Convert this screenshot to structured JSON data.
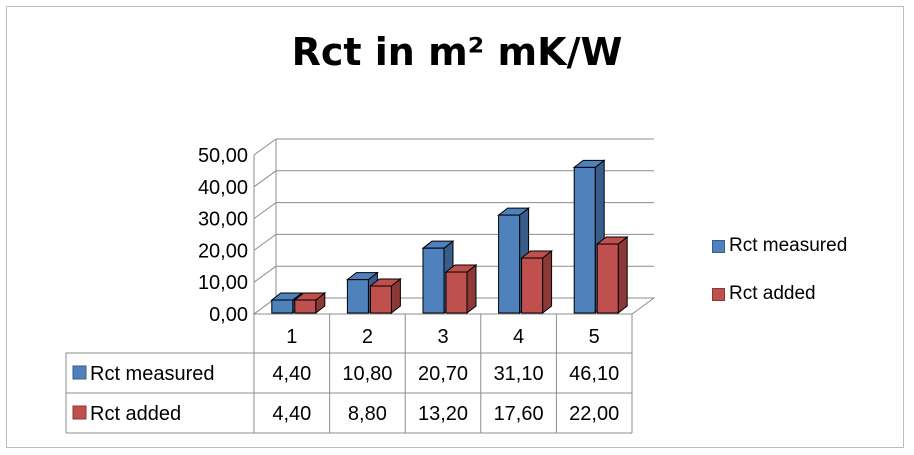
{
  "colors": {
    "measured": "#4f81bd",
    "measured_dark": "#385d8a",
    "added": "#c0504d",
    "added_dark": "#8c3836",
    "grid": "#8c8c8c"
  },
  "chart_data": {
    "type": "bar",
    "title": "Rct in m² mK/W",
    "categories": [
      "1",
      "2",
      "3",
      "4",
      "5"
    ],
    "series": [
      {
        "name": "Rct measured",
        "values": [
          4.4,
          10.8,
          20.7,
          31.1,
          46.1
        ]
      },
      {
        "name": "Rct added",
        "values": [
          4.4,
          8.8,
          13.2,
          17.6,
          22.0
        ]
      }
    ],
    "value_labels": {
      "measured": [
        "4,40",
        "10,80",
        "20,70",
        "31,10",
        "46,10"
      ],
      "added": [
        "4,40",
        "8,80",
        "13,20",
        "17,60",
        "22,00"
      ]
    },
    "ylim": [
      0,
      50
    ],
    "yticks": [
      "0,00",
      "10,00",
      "20,00",
      "30,00",
      "40,00",
      "50,00"
    ],
    "grid": true,
    "legend": "right",
    "data_table": true,
    "style": "3d-clustered-column"
  }
}
